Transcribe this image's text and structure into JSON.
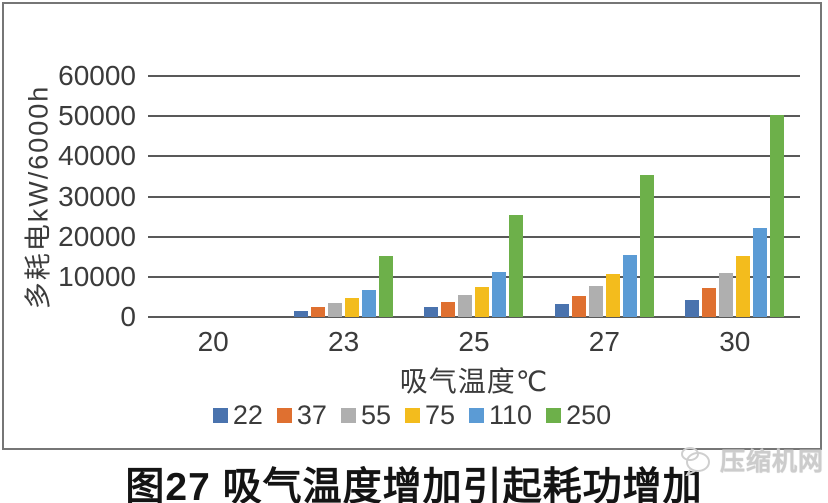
{
  "figure": {
    "caption": "图27 吸气温度增加引起耗功增加"
  },
  "watermark": {
    "text": "压缩机网",
    "icon": "bubble-logo-icon"
  },
  "chart_data": {
    "type": "bar",
    "title": "图27 吸气温度增加引起耗功增加",
    "xlabel": "吸气温度℃",
    "ylabel": "多耗电kW/6000h",
    "ylim": [
      0,
      60000
    ],
    "y_ticks": [
      0,
      10000,
      20000,
      30000,
      40000,
      50000,
      60000
    ],
    "grid": true,
    "legend_position": "bottom",
    "categories": [
      "20",
      "23",
      "25",
      "27",
      "30"
    ],
    "series": [
      {
        "name": "22",
        "color": "#4A73AE",
        "values": [
          0,
          1500,
          2500,
          3300,
          4300
        ]
      },
      {
        "name": "37",
        "color": "#DF7030",
        "values": [
          0,
          2500,
          3800,
          5200,
          7300
        ]
      },
      {
        "name": "55",
        "color": "#AFAFAF",
        "values": [
          0,
          3600,
          5600,
          7700,
          11000
        ]
      },
      {
        "name": "75",
        "color": "#F3BC1D",
        "values": [
          0,
          4800,
          7400,
          10800,
          15200
        ]
      },
      {
        "name": "110",
        "color": "#5B9BD5",
        "values": [
          0,
          6800,
          11100,
          15400,
          22200
        ]
      },
      {
        "name": "250",
        "color": "#6DB04A",
        "values": [
          0,
          15200,
          25400,
          35400,
          50400
        ]
      }
    ]
  }
}
